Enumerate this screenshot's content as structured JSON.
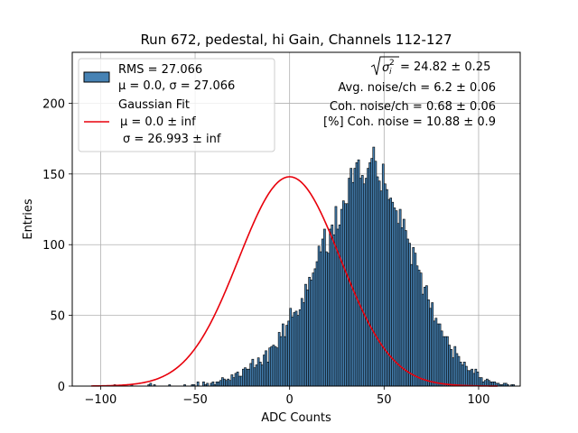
{
  "chart_data": {
    "type": "bar",
    "title": "Run 672, pedestal, hi Gain, Channels 112-127",
    "xlabel": "ADC Counts",
    "ylabel": "Entries",
    "xlim": [
      -115,
      122
    ],
    "ylim": [
      0,
      236
    ],
    "grid": true,
    "x_ticks": [
      -100,
      -50,
      0,
      50,
      100
    ],
    "x_tick_labels": [
      "−100",
      "−50",
      "0",
      "50",
      "100"
    ],
    "y_ticks": [
      0,
      50,
      100,
      150,
      200
    ],
    "y_tick_labels": [
      "0",
      "50",
      "100",
      "150",
      "200"
    ],
    "histogram": {
      "name": "RMS = 27.066",
      "label_line2": "μ = 0.0, σ = 27.066",
      "bin_start": -105,
      "bin_width": 1,
      "color": "#4682b4",
      "edge_color": "#000000",
      "values": [
        0,
        0,
        0,
        0,
        0,
        0,
        0,
        0,
        0,
        0,
        0,
        0,
        1,
        0,
        0,
        0,
        0,
        0,
        0,
        0,
        0,
        1,
        0,
        0,
        0,
        0,
        0,
        0,
        0,
        0,
        1,
        2,
        0,
        1,
        0,
        0,
        0,
        0,
        0,
        0,
        0,
        1,
        0,
        0,
        0,
        0,
        0,
        0,
        0,
        1,
        0,
        0,
        0,
        1,
        1,
        0,
        3,
        0,
        0,
        3,
        1,
        2,
        0,
        2,
        3,
        1,
        3,
        3,
        4,
        6,
        5,
        4,
        5,
        4,
        8,
        6,
        9,
        10,
        7,
        7,
        12,
        13,
        12,
        12,
        16,
        19,
        13,
        15,
        20,
        17,
        15,
        22,
        25,
        17,
        27,
        28,
        29,
        28,
        27,
        38,
        35,
        44,
        35,
        43,
        46,
        55,
        49,
        52,
        53,
        50,
        54,
        62,
        59,
        72,
        68,
        77,
        75,
        80,
        83,
        88,
        99,
        95,
        104,
        111,
        95,
        94,
        111,
        114,
        107,
        127,
        111,
        114,
        125,
        131,
        129,
        129,
        147,
        154,
        144,
        154,
        158,
        160,
        147,
        149,
        143,
        147,
        154,
        158,
        161,
        169,
        159,
        148,
        145,
        138,
        157,
        143,
        139,
        132,
        133,
        130,
        126,
        124,
        115,
        125,
        112,
        118,
        110,
        104,
        101,
        86,
        98,
        94,
        85,
        82,
        80,
        65,
        70,
        71,
        61,
        55,
        59,
        46,
        48,
        44,
        44,
        39,
        35,
        35,
        35,
        29,
        26,
        20,
        28,
        23,
        21,
        17,
        15,
        17,
        14,
        11,
        11,
        12,
        9,
        12,
        10,
        6,
        6,
        3,
        4,
        5,
        4,
        3,
        3,
        3,
        2,
        2,
        1,
        1,
        2,
        2,
        1,
        0,
        1,
        1,
        0,
        0,
        0,
        0,
        0,
        0,
        0,
        0,
        0,
        0,
        0,
        0,
        0,
        0,
        0,
        0,
        0
      ]
    },
    "fit": {
      "name": "Gaussian Fit",
      "label_line2": "μ = 0.0 ± inf",
      "label_line3": "σ = 26.993 ± inf",
      "mu": 0.0,
      "sigma": 26.993,
      "amplitude": 148,
      "x_range": [
        -105,
        110
      ],
      "color": "#e8000b"
    },
    "annotations": {
      "line1_value": " = 24.82 ± 0.25",
      "line2": "Avg. noise/ch = 6.2 ± 0.06",
      "line3": "Coh. noise/ch = 0.68 ± 0.06",
      "line4": "[%] Coh. noise = 10.88 ± 0.9"
    }
  }
}
